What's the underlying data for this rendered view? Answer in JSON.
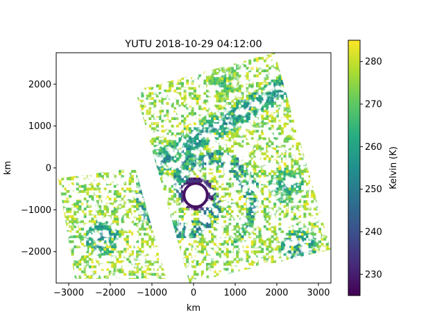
{
  "chart_data": {
    "type": "heatmap",
    "title": "YUTU 2018-10-29 04:12:00",
    "xlabel": "km",
    "ylabel": "km",
    "xlim": [
      -3300,
      3300
    ],
    "ylim": [
      -2750,
      2750
    ],
    "x_ticks": [
      -3000,
      -2000,
      -1000,
      0,
      1000,
      2000,
      3000
    ],
    "y_ticks": [
      -2000,
      -1000,
      0,
      1000,
      2000
    ],
    "x_tick_labels": [
      "−3000",
      "−2000",
      "−1000",
      "0",
      "1000",
      "2000",
      "3000"
    ],
    "y_tick_labels": [
      "−2000",
      "−1000",
      "0",
      "1000",
      "2000"
    ],
    "colorbar": {
      "label": "Kelvin (K)",
      "min": 225,
      "max": 285,
      "ticks": [
        230,
        240,
        250,
        260,
        270,
        280
      ],
      "tick_labels": [
        "230",
        "240",
        "250",
        "260",
        "270",
        "280"
      ],
      "colormap": "viridis"
    },
    "colormap_stops": [
      "#440154",
      "#472c7a",
      "#3b518b",
      "#2c718e",
      "#21908d",
      "#27ad81",
      "#5cc863",
      "#aadc32",
      "#fde725"
    ],
    "swaths": [
      {
        "name": "east-swath",
        "corners": [
          [
            -1400,
            1850
          ],
          [
            1950,
            2750
          ],
          [
            3300,
            -1950
          ],
          [
            -100,
            -2750
          ]
        ]
      },
      {
        "name": "west-swath",
        "corners": [
          [
            -3250,
            -250
          ],
          [
            -1400,
            0
          ],
          [
            -650,
            -2650
          ],
          [
            -2850,
            -2650
          ]
        ]
      }
    ],
    "features": [
      {
        "name": "typhoon-eye",
        "center": [
          50,
          -650
        ],
        "radius": 280,
        "value": "missing",
        "ring_value": 228
      },
      {
        "name": "eyewall-band",
        "center": [
          50,
          -650
        ],
        "radius": 600,
        "value": 240
      },
      {
        "name": "northeast-cloud-band",
        "from": [
          -1000,
          0
        ],
        "to": [
          2100,
          1900
        ],
        "value": 250
      },
      {
        "name": "north-cloud-cluster",
        "center": [
          700,
          2000
        ],
        "value": 258
      },
      {
        "name": "southwest-cluster",
        "center": [
          -2200,
          -1700
        ],
        "value": 245
      },
      {
        "name": "east-cluster",
        "center": [
          2200,
          -450
        ],
        "value": 250
      },
      {
        "name": "southeast-cluster",
        "center": [
          2500,
          -1900
        ],
        "value": 245
      }
    ]
  }
}
